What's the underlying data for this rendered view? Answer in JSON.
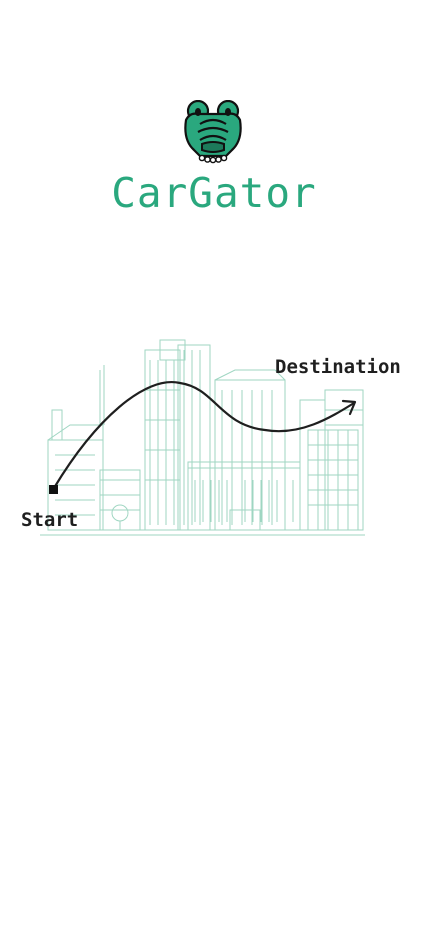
{
  "app": {
    "title": "CarGator",
    "brand_color": "#2aa87e",
    "logo_icon": "gator-head-icon"
  },
  "route": {
    "start_label": "Start",
    "destination_label": "Destination"
  }
}
